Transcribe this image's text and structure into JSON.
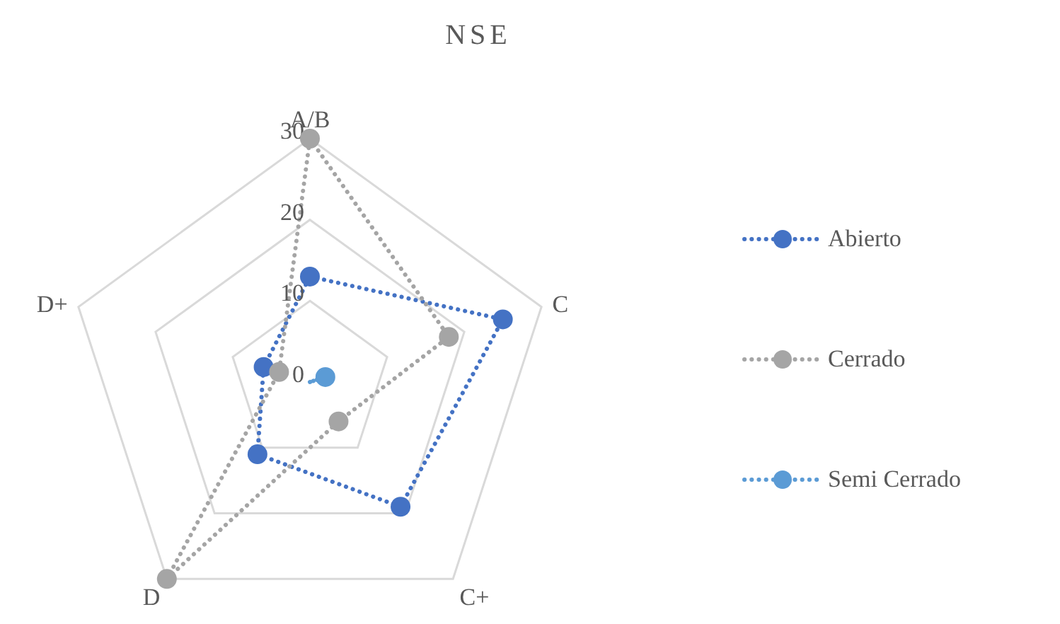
{
  "chart_data": {
    "type": "radar",
    "title": "NSE",
    "categories": [
      "A/B",
      "C",
      "C+",
      "D",
      "D+"
    ],
    "series": [
      {
        "name": "Abierto",
        "color": "#4472c4",
        "values": [
          13,
          25,
          19,
          11,
          6
        ]
      },
      {
        "name": "Cerrado",
        "color": "#a5a5a5",
        "values": [
          30,
          18,
          6,
          30,
          4
        ]
      },
      {
        "name": "Semi Cerrado",
        "color": "#5b9bd5",
        "values": [
          null,
          2,
          null,
          null,
          null
        ]
      }
    ],
    "ylim": [
      0,
      30
    ],
    "yticks": [
      0,
      10,
      20,
      30
    ],
    "grid": true,
    "legend": "right",
    "marker": "circle",
    "line_style": "dotted"
  }
}
